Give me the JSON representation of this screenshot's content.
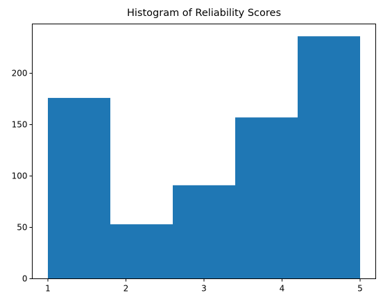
{
  "chart_data": {
    "type": "bar",
    "title": "Histogram of Reliability Scores",
    "xlabel": "",
    "ylabel": "",
    "bins": [
      {
        "x0": 1.0,
        "x1": 1.8,
        "value": 176
      },
      {
        "x0": 1.8,
        "x1": 2.6,
        "value": 53
      },
      {
        "x0": 2.6,
        "x1": 3.4,
        "value": 91
      },
      {
        "x0": 3.4,
        "x1": 4.2,
        "value": 157
      },
      {
        "x0": 4.2,
        "x1": 5.0,
        "value": 236
      }
    ],
    "xlim": [
      0.8,
      5.2
    ],
    "ylim": [
      0,
      248
    ],
    "x_ticks": [
      1,
      2,
      3,
      4,
      5
    ],
    "y_ticks": [
      0,
      50,
      100,
      150,
      200
    ],
    "bar_color": "#1f77b4",
    "grid": false
  }
}
